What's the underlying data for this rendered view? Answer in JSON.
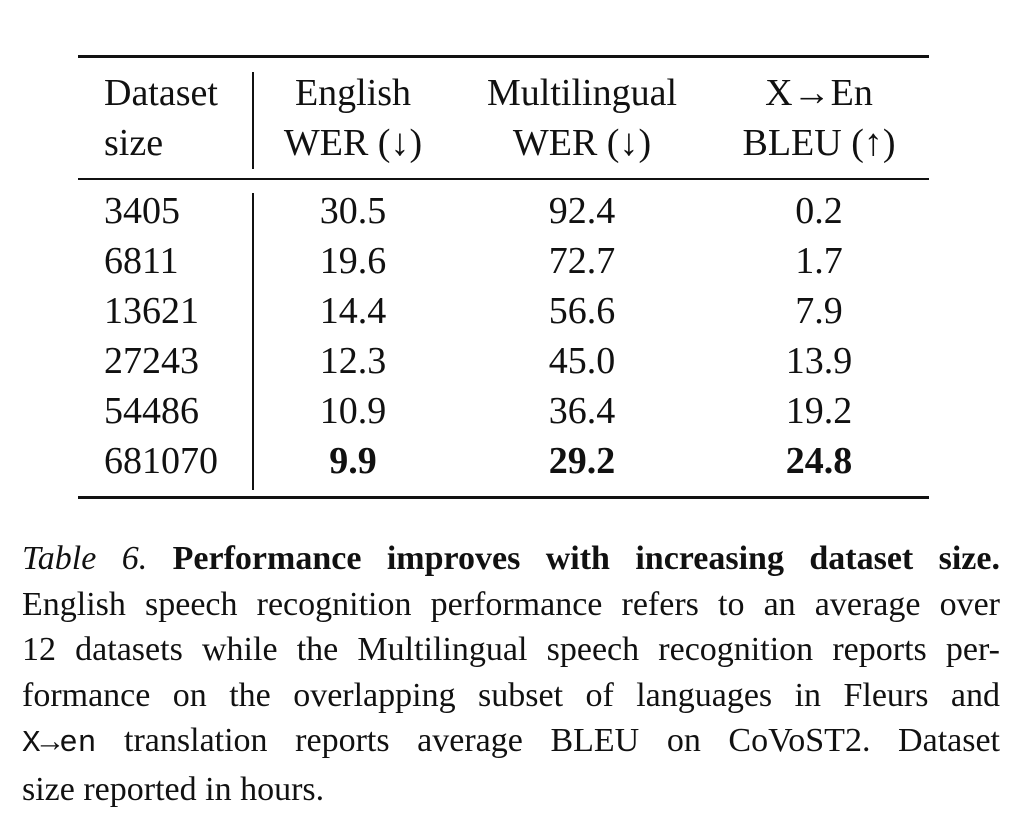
{
  "table": {
    "headers": [
      [
        "Dataset",
        "size"
      ],
      [
        "English",
        "WER (↓)"
      ],
      [
        "Multilingual",
        "WER (↓)"
      ],
      [
        "X→En",
        "BLEU (↑)"
      ]
    ],
    "rows": [
      [
        "3405",
        "30.5",
        "92.4",
        "0.2"
      ],
      [
        "6811",
        "19.6",
        "72.7",
        "1.7"
      ],
      [
        "13621",
        "14.4",
        "56.6",
        "7.9"
      ],
      [
        "27243",
        "12.3",
        "45.0",
        "13.9"
      ],
      [
        "54486",
        "10.9",
        "36.4",
        "19.2"
      ],
      [
        "681070",
        "9.9",
        "29.2",
        "24.8"
      ]
    ],
    "bold_row_index": 5
  },
  "caption": {
    "label": "Table 6.",
    "title": "Performance improves with increasing dataset size.",
    "line1": "English speech recognition performance refers to an average over",
    "line2": "12 datasets while the Multilingual speech recognition reports per-",
    "line3": "formance on the overlapping subset of languages in Fleurs and",
    "line4_mono": "X→en",
    "line4_rest": "translation reports average BLEU on CoVoST2. Dataset",
    "line5": "size reported in hours."
  }
}
